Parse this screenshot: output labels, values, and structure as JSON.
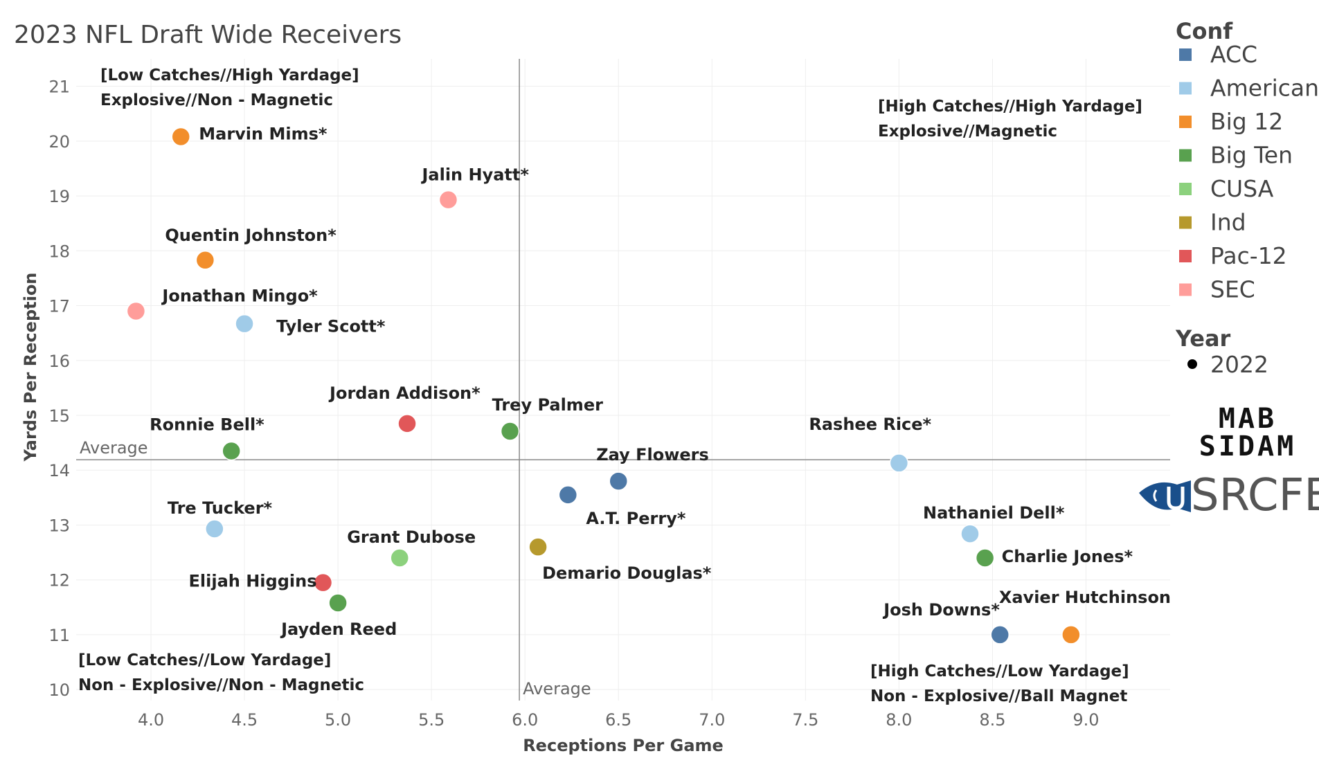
{
  "title": "2023 NFL Draft Wide Receivers",
  "chart_data": {
    "type": "scatter",
    "title": "2023 NFL Draft Wide Receivers",
    "xlabel": "Receptions Per Game",
    "ylabel": "Yards Per Reception",
    "xlim": [
      3.6,
      9.45
    ],
    "ylim": [
      9.8,
      21.5
    ],
    "xticks": [
      "4.0",
      "4.5",
      "5.0",
      "5.5",
      "6.0",
      "6.5",
      "7.0",
      "7.5",
      "8.0",
      "8.5",
      "9.0"
    ],
    "yticks": [
      "10",
      "11",
      "12",
      "13",
      "14",
      "15",
      "16",
      "17",
      "18",
      "19",
      "20",
      "21"
    ],
    "grid": true,
    "reference_lines": {
      "x_average": 5.97,
      "y_average": 14.19,
      "x_label": "Average",
      "y_label": "Average"
    },
    "quadrant_labels": {
      "top_left": [
        "[Low Catches//High Yardage]",
        "Explosive//Non - Magnetic"
      ],
      "top_right": [
        "[High Catches//High Yardage]",
        "Explosive//Magnetic"
      ],
      "bottom_left": [
        "[Low Catches//Low Yardage]",
        "Non - Explosive//Non - Magnetic"
      ],
      "bottom_right": [
        "[High Catches//Low Yardage]",
        "Non - Explosive//Ball Magnet"
      ]
    },
    "points": [
      {
        "name": "Marvin Mims*",
        "conf": "Big 12",
        "x": 4.16,
        "y": 20.08
      },
      {
        "name": "Jalin Hyatt*",
        "conf": "SEC",
        "x": 5.59,
        "y": 18.93
      },
      {
        "name": "Quentin Johnston*",
        "conf": "Big 12",
        "x": 4.29,
        "y": 17.83
      },
      {
        "name": "Jonathan Mingo*",
        "conf": "SEC",
        "x": 3.92,
        "y": 16.9
      },
      {
        "name": "Tyler Scott*",
        "conf": "American",
        "x": 4.5,
        "y": 16.67
      },
      {
        "name": "Jordan Addison*",
        "conf": "Pac-12",
        "x": 5.37,
        "y": 14.85
      },
      {
        "name": "Trey Palmer",
        "conf": "Big Ten",
        "x": 5.92,
        "y": 14.71
      },
      {
        "name": "Ronnie Bell*",
        "conf": "Big Ten",
        "x": 4.43,
        "y": 14.35
      },
      {
        "name": "Rashee Rice*",
        "conf": "American",
        "x": 8.0,
        "y": 14.13
      },
      {
        "name": "Zay Flowers",
        "conf": "ACC",
        "x": 6.5,
        "y": 13.8
      },
      {
        "name": "A.T. Perry*",
        "conf": "ACC",
        "x": 6.23,
        "y": 13.55
      },
      {
        "name": "Tre Tucker*",
        "conf": "American",
        "x": 4.34,
        "y": 12.93
      },
      {
        "name": "Nathaniel Dell*",
        "conf": "American",
        "x": 8.38,
        "y": 12.84
      },
      {
        "name": "Grant Dubose",
        "conf": "CUSA",
        "x": 5.33,
        "y": 12.4
      },
      {
        "name": "Demario Douglas*",
        "conf": "Ind",
        "x": 6.07,
        "y": 12.6
      },
      {
        "name": "Charlie Jones*",
        "conf": "Big Ten",
        "x": 8.46,
        "y": 12.4
      },
      {
        "name": "Elijah Higgins",
        "conf": "Pac-12",
        "x": 4.92,
        "y": 11.95
      },
      {
        "name": "Jayden Reed",
        "conf": "Big Ten",
        "x": 5.0,
        "y": 11.58
      },
      {
        "name": "Josh Downs*",
        "conf": "ACC",
        "x": 8.54,
        "y": 11.0
      },
      {
        "name": "Xavier Hutchinson",
        "conf": "Big 12",
        "x": 8.92,
        "y": 11.0
      }
    ]
  },
  "legend": {
    "conf_title": "Conf",
    "conf_items": [
      {
        "label": "ACC",
        "color": "#4e79a7"
      },
      {
        "label": "American",
        "color": "#a0cbe8"
      },
      {
        "label": "Big 12",
        "color": "#f28e2b"
      },
      {
        "label": "Big Ten",
        "color": "#59a14f"
      },
      {
        "label": "CUSA",
        "color": "#8cd17d"
      },
      {
        "label": "Ind",
        "color": "#b6992d"
      },
      {
        "label": "Pac-12",
        "color": "#e15759"
      },
      {
        "label": "SEC",
        "color": "#ff9d9a"
      }
    ],
    "year_title": "Year",
    "year_items": [
      {
        "label": "2022",
        "color": "#000000"
      }
    ]
  },
  "logos": {
    "line1": "MAB",
    "line2": "SIDAM",
    "srcfb": "SRCFB",
    "srcfb_color": "#1a4f8b"
  }
}
